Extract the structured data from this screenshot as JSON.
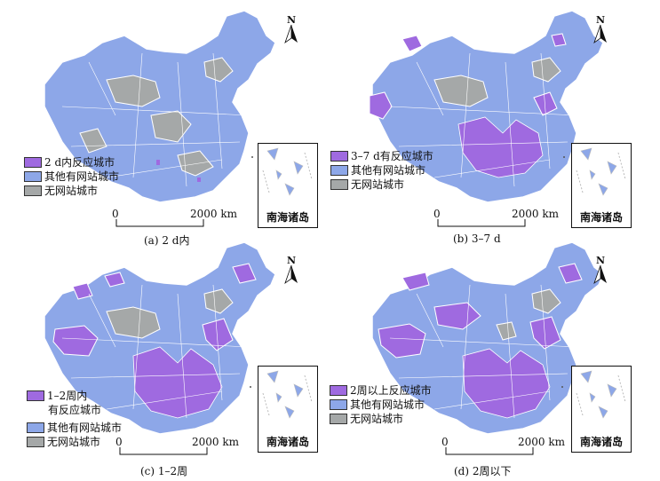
{
  "colors": {
    "react": "#9f6ae0",
    "other": "#8da7e8",
    "none": "#a5a8a8",
    "border": "#ffffff"
  },
  "scale": {
    "zero": "0",
    "end": "2000 km"
  },
  "north_label": "N",
  "inset_label": "南海诸岛",
  "panels": [
    {
      "caption": "(a) 2 d内",
      "legend": [
        "2 d内反应城市",
        "其他有网站城市",
        "无网站城市"
      ]
    },
    {
      "caption": "(b) 3–7 d",
      "legend": [
        "3–7 d有反应城市",
        "其他有网站城市",
        "无网站城市"
      ]
    },
    {
      "caption": "(c) 1–2周",
      "legend": [
        "1–2周内",
        "有反应城市",
        "其他有网站城市",
        "无网站城市"
      ]
    },
    {
      "caption": "(d) 2周以下",
      "legend": [
        "2周以上反应城市",
        "其他有网站城市",
        "无网站城市"
      ]
    }
  ]
}
